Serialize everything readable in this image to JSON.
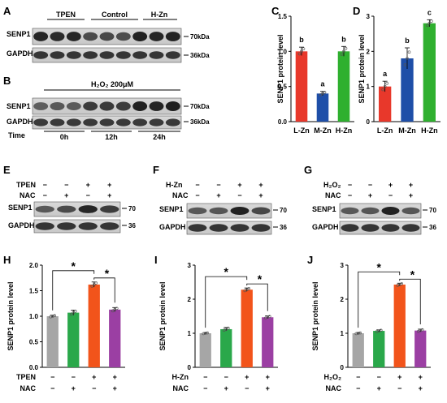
{
  "panels": {
    "A": {
      "letter": "A",
      "groups": [
        "TPEN",
        "Control",
        "H-Zn"
      ],
      "rows": [
        "SENP1",
        "GAPDH"
      ],
      "mw": [
        "70kDa",
        "36kDa"
      ]
    },
    "B": {
      "letter": "B",
      "treatment": "H₂O₂ 200μM",
      "rows": [
        "SENP1",
        "GAPDH"
      ],
      "mw": [
        "70kDa",
        "36kDa"
      ],
      "time_label": "Time",
      "times": [
        "0h",
        "12h",
        "24h"
      ]
    },
    "E": {
      "letter": "E",
      "rows": [
        "TPEN",
        "NAC"
      ],
      "signs": [
        [
          "−",
          "−",
          "+",
          "+"
        ],
        [
          "−",
          "+",
          "−",
          "+"
        ]
      ],
      "bands": [
        "SENP1",
        "GAPDH"
      ],
      "mw": [
        "70",
        "36"
      ]
    },
    "F": {
      "letter": "F",
      "rows": [
        "H-Zn",
        "NAC"
      ],
      "signs": [
        [
          "−",
          "−",
          "+",
          "+"
        ],
        [
          "−",
          "+",
          "−",
          "+"
        ]
      ],
      "bands": [
        "SENP1",
        "GAPDH"
      ],
      "mw": [
        "70",
        "36"
      ]
    },
    "G": {
      "letter": "G",
      "rows": [
        "H₂O₂",
        "NAC"
      ],
      "signs": [
        [
          "−",
          "−",
          "+",
          "+"
        ],
        [
          "−",
          "+",
          "−",
          "+"
        ]
      ],
      "bands": [
        "SENP1",
        "GAPDH"
      ],
      "mw": [
        "70",
        "36"
      ]
    }
  },
  "chart_data": [
    {
      "id": "C",
      "letter": "C",
      "type": "bar",
      "categories": [
        "L-Zn",
        "M-Zn",
        "H-Zn"
      ],
      "values": [
        1.0,
        0.4,
        1.0
      ],
      "errors": [
        0.06,
        0.03,
        0.07
      ],
      "letters": [
        "b",
        "a",
        "b"
      ],
      "ylabel": "SENP1 protein level",
      "ylim": [
        0,
        1.5
      ],
      "yticks": [
        "0.0",
        "0.5",
        "1.0",
        "1.5"
      ],
      "colors": [
        "#e8382b",
        "#1f4fa8",
        "#2fb02f"
      ]
    },
    {
      "id": "D",
      "letter": "D",
      "type": "bar",
      "categories": [
        "L-Zn",
        "M-Zn",
        "H-Zn"
      ],
      "values": [
        1.0,
        1.8,
        2.8
      ],
      "errors": [
        0.15,
        0.3,
        0.1
      ],
      "letters": [
        "a",
        "b",
        "c"
      ],
      "ylabel": "SENP1 protein level",
      "ylim": [
        0,
        3
      ],
      "yticks": [
        "0",
        "1",
        "2",
        "3"
      ],
      "colors": [
        "#e8382b",
        "#1f4fa8",
        "#2fb02f"
      ]
    },
    {
      "id": "H",
      "letter": "H",
      "type": "bar",
      "values": [
        1.0,
        1.07,
        1.62,
        1.13
      ],
      "errors": [
        0.02,
        0.05,
        0.05,
        0.04
      ],
      "ylabel": "SENP1 protein level",
      "ylim": [
        0,
        2.0
      ],
      "yticks": [
        "0.0",
        "0.5",
        "1.0",
        "1.5",
        "2.0"
      ],
      "colors": [
        "#a6a6a6",
        "#2aa84a",
        "#f2541b",
        "#9b3fa3"
      ],
      "sig": [
        "*",
        "*"
      ],
      "conditions": [
        {
          "label": "TPEN",
          "signs": [
            "−",
            "−",
            "+",
            "+"
          ]
        },
        {
          "label": "NAC",
          "signs": [
            "−",
            "+",
            "−",
            "+"
          ]
        }
      ]
    },
    {
      "id": "I",
      "letter": "I",
      "type": "bar",
      "values": [
        1.0,
        1.12,
        2.28,
        1.47
      ],
      "errors": [
        0.02,
        0.05,
        0.05,
        0.04
      ],
      "ylabel": "SENP1 protein level",
      "ylim": [
        0,
        3
      ],
      "yticks": [
        "0",
        "1",
        "2",
        "3"
      ],
      "colors": [
        "#a6a6a6",
        "#2aa84a",
        "#f2541b",
        "#9b3fa3"
      ],
      "sig": [
        "*",
        "*"
      ],
      "conditions": [
        {
          "label": "H-Zn",
          "signs": [
            "−",
            "−",
            "+",
            "+"
          ]
        },
        {
          "label": "NAC",
          "signs": [
            "−",
            "+",
            "−",
            "+"
          ]
        }
      ]
    },
    {
      "id": "J",
      "letter": "J",
      "type": "bar",
      "values": [
        1.0,
        1.07,
        2.43,
        1.08
      ],
      "errors": [
        0.02,
        0.03,
        0.04,
        0.04
      ],
      "ylabel": "SENP1 protein level",
      "ylim": [
        0,
        3
      ],
      "yticks": [
        "0",
        "1",
        "2",
        "3"
      ],
      "colors": [
        "#a6a6a6",
        "#2aa84a",
        "#f2541b",
        "#9b3fa3"
      ],
      "sig": [
        "*",
        "*"
      ],
      "conditions": [
        {
          "label": "H₂O₂",
          "signs": [
            "−",
            "−",
            "+",
            "+"
          ]
        },
        {
          "label": "NAC",
          "signs": [
            "−",
            "+",
            "−",
            "+"
          ]
        }
      ]
    }
  ]
}
